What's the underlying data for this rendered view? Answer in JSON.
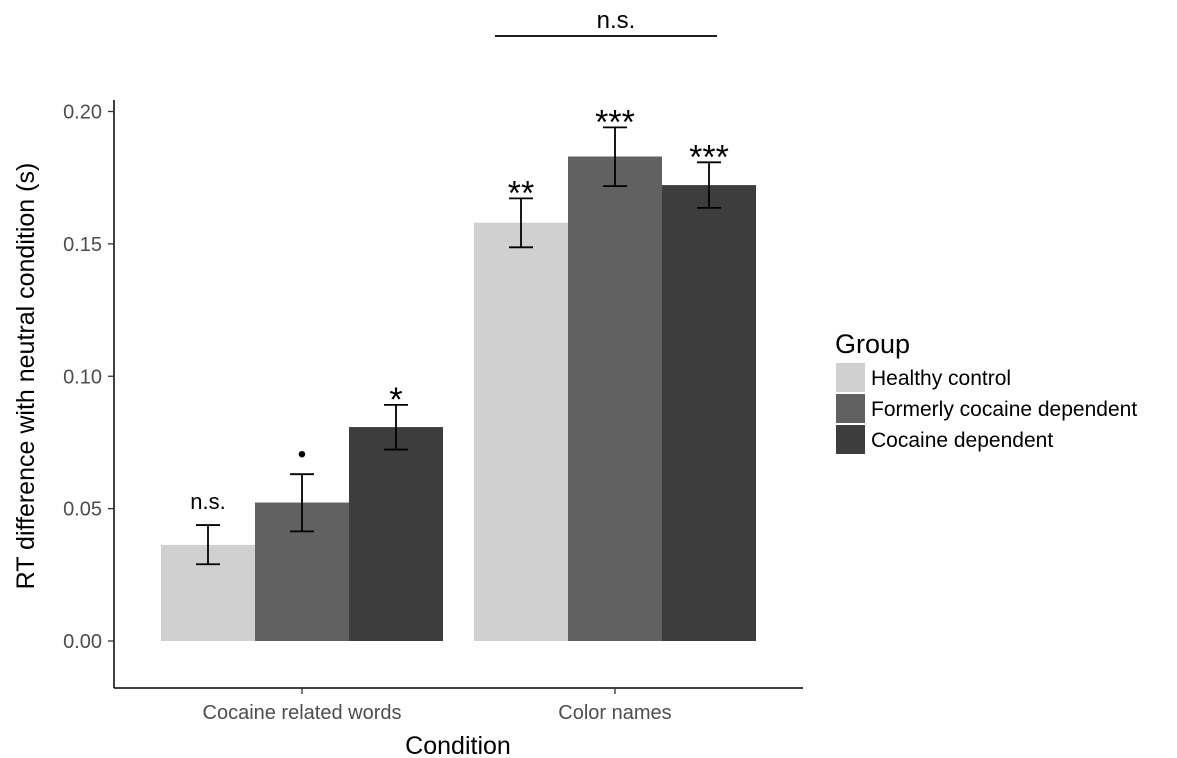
{
  "chart_data": {
    "type": "bar",
    "xlabel": "Condition",
    "ylabel": "RT difference with neutral condition (s)",
    "ylim": [
      -0.017,
      0.205
    ],
    "yticks": [
      0.0,
      0.05,
      0.1,
      0.15,
      0.2
    ],
    "ytick_labels": [
      "0.00",
      "0.05",
      "0.10",
      "0.15",
      "0.20"
    ],
    "categories": [
      "Cocaine related words",
      "Color names"
    ],
    "grid": false,
    "legend": {
      "title": "Group",
      "position": "right"
    },
    "series": [
      {
        "name": "Healthy control",
        "color": "#d0d0d0",
        "values": [
          0.0363,
          0.158
        ],
        "error_low": [
          0.029,
          0.1487
        ],
        "error_high": [
          0.0438,
          0.1672
        ],
        "significance": [
          "n.s.",
          "**"
        ]
      },
      {
        "name": "Formerly cocaine dependent",
        "color": "#616161",
        "values": [
          0.0523,
          0.183
        ],
        "error_low": [
          0.0414,
          0.1718
        ],
        "error_high": [
          0.063,
          0.194
        ],
        "significance": [
          "•",
          "***"
        ]
      },
      {
        "name": "Cocaine dependent",
        "color": "#3d3d3d",
        "values": [
          0.0808,
          0.1722
        ],
        "error_low": [
          0.0723,
          0.1636
        ],
        "error_high": [
          0.0892,
          0.1808
        ],
        "significance": [
          "*",
          "***"
        ]
      }
    ],
    "annotations": [
      {
        "text": "n.s.",
        "type": "bracket",
        "category": "Color names"
      }
    ]
  }
}
